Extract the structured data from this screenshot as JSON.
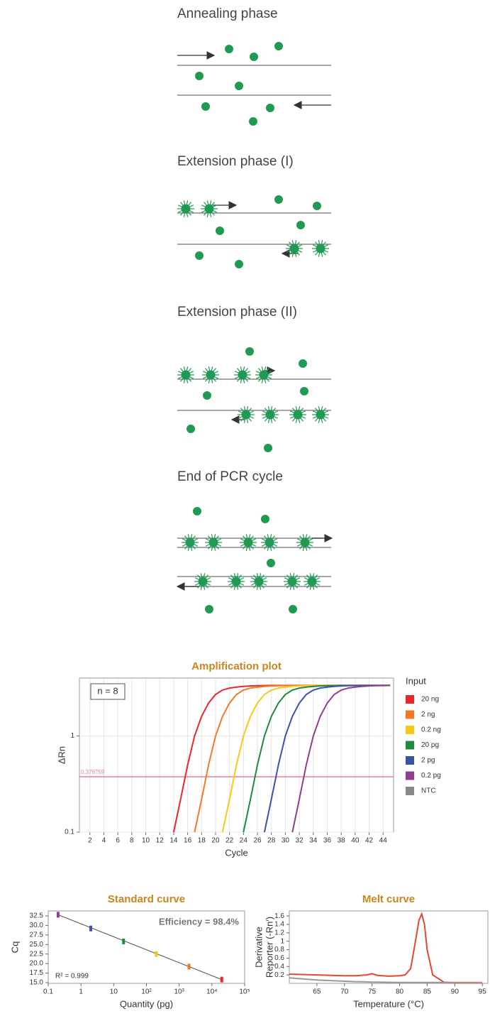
{
  "diagram": {
    "panels": [
      {
        "title": "Annealing phase"
      },
      {
        "title": "Extension phase (I)"
      },
      {
        "title": "Extension phase (II)"
      },
      {
        "title": "End of PCR cycle"
      }
    ]
  },
  "chart_data": [
    {
      "type": "line",
      "title": "Amplification plot",
      "xlabel": "Cycle",
      "ylabel": "ΔRn",
      "yscale": "log",
      "grid": true,
      "legend": "right",
      "legend_title": "Input",
      "annotation": "n = 8",
      "threshold": 0.376759,
      "threshold_color": "#e87ca0",
      "xlim": [
        0.5,
        45.5
      ],
      "xticks": [
        2,
        4,
        6,
        8,
        10,
        12,
        14,
        16,
        18,
        20,
        22,
        24,
        26,
        28,
        30,
        32,
        34,
        36,
        38,
        40,
        42,
        44
      ],
      "ylim": [
        0.1,
        4
      ],
      "yticks": [
        0.1,
        1
      ],
      "x": [
        14,
        15,
        16,
        17,
        18,
        19,
        20,
        21,
        22,
        23,
        24,
        25,
        26,
        27,
        28,
        29,
        30,
        31,
        32,
        33,
        34,
        35,
        36,
        37,
        38,
        39,
        40,
        41,
        42,
        43,
        44,
        45
      ],
      "series": [
        {
          "name": "20 ng",
          "color": "#e8262b",
          "values": [
            0.1,
            0.22,
            0.5,
            1.0,
            1.6,
            2.2,
            2.7,
            3.0,
            3.15,
            3.22,
            3.28,
            3.31,
            3.33,
            3.34,
            3.35,
            3.35,
            3.35,
            3.35,
            3.35,
            3.35,
            3.35,
            3.35,
            3.35,
            3.35,
            3.35,
            3.35,
            3.35,
            3.35,
            3.35,
            3.35,
            3.35,
            3.35
          ]
        },
        {
          "name": "2 ng",
          "color": "#ef7a26",
          "values": [
            null,
            null,
            null,
            0.1,
            0.22,
            0.5,
            1.0,
            1.6,
            2.2,
            2.7,
            3.0,
            3.15,
            3.22,
            3.28,
            3.31,
            3.33,
            3.34,
            3.35,
            3.35,
            3.35,
            3.35,
            3.35,
            3.35,
            3.35,
            3.35,
            3.35,
            3.35,
            3.35,
            3.35,
            3.35,
            3.35,
            3.35
          ]
        },
        {
          "name": "0.2 ng",
          "color": "#f5c81a",
          "values": [
            null,
            null,
            null,
            null,
            null,
            null,
            null,
            0.1,
            0.22,
            0.5,
            1.0,
            1.6,
            2.2,
            2.7,
            3.0,
            3.15,
            3.22,
            3.28,
            3.31,
            3.33,
            3.34,
            3.35,
            3.35,
            3.35,
            3.35,
            3.35,
            3.35,
            3.35,
            3.35,
            3.35,
            3.35,
            3.35
          ]
        },
        {
          "name": "20 pg",
          "color": "#1f8a3c",
          "values": [
            null,
            null,
            null,
            null,
            null,
            null,
            null,
            null,
            null,
            null,
            0.1,
            0.22,
            0.5,
            1.0,
            1.6,
            2.2,
            2.7,
            3.0,
            3.15,
            3.22,
            3.28,
            3.31,
            3.33,
            3.34,
            3.35,
            3.35,
            3.35,
            3.35,
            3.35,
            3.35,
            3.35,
            3.35
          ]
        },
        {
          "name": "2 pg",
          "color": "#3a52a8",
          "values": [
            null,
            null,
            null,
            null,
            null,
            null,
            null,
            null,
            null,
            null,
            null,
            null,
            null,
            0.1,
            0.22,
            0.5,
            1.0,
            1.6,
            2.2,
            2.7,
            3.0,
            3.15,
            3.22,
            3.28,
            3.31,
            3.33,
            3.34,
            3.35,
            3.35,
            3.35,
            3.35,
            3.35
          ]
        },
        {
          "name": "0.2 pg",
          "color": "#8e3f8e",
          "values": [
            null,
            null,
            null,
            null,
            null,
            null,
            null,
            null,
            null,
            null,
            null,
            null,
            null,
            null,
            null,
            null,
            null,
            0.1,
            0.22,
            0.5,
            1.0,
            1.6,
            2.2,
            2.7,
            3.0,
            3.15,
            3.22,
            3.28,
            3.31,
            3.33,
            3.34,
            3.35
          ]
        },
        {
          "name": "NTC",
          "color": "#888888",
          "values": [
            null,
            null,
            null,
            null,
            null,
            null,
            null,
            null,
            null,
            null,
            null,
            null,
            null,
            null,
            null,
            null,
            null,
            null,
            null,
            null,
            null,
            null,
            null,
            null,
            null,
            null,
            null,
            null,
            null,
            null,
            null,
            null
          ]
        }
      ]
    },
    {
      "type": "scatter",
      "title": "Standard curve",
      "xlabel": "Quantity (pg)",
      "ylabel": "Cq",
      "xscale": "log",
      "annotations": [
        "Efficiency = 98.4%",
        "R² = 0.999"
      ],
      "xlim": [
        0.1,
        100000
      ],
      "xticks": [
        0.1,
        1,
        10,
        {
          "value": 100,
          "label": "10²"
        },
        {
          "value": 1000,
          "label": "10³"
        },
        {
          "value": 10000,
          "label": "10⁴"
        },
        {
          "value": 100000,
          "label": "10⁵"
        }
      ],
      "ylim": [
        14.8,
        33.8
      ],
      "yticks": [
        {
          "value": 15,
          "label": "15.0"
        },
        17.5,
        {
          "value": 20,
          "label": "20.0"
        },
        22.5,
        {
          "value": 25,
          "label": "25.0"
        },
        27.5,
        {
          "value": 30,
          "label": "30.0"
        },
        32.5
      ],
      "x": [
        0.2,
        2,
        20,
        200,
        2000,
        20000
      ],
      "values": [
        32.8,
        29.2,
        25.8,
        22.5,
        19.2,
        15.8
      ],
      "colors": [
        "#8e3f8e",
        "#3a52a8",
        "#1f8a3c",
        "#f5c81a",
        "#ef7a26",
        "#e8262b"
      ],
      "line_color": "#555555"
    },
    {
      "type": "line",
      "title": "Melt curve",
      "xlabel": "Temperature (°C)",
      "ylabel": [
        "Derivative",
        "Reporter (-Rn′)"
      ],
      "xlim": [
        60,
        96
      ],
      "xticks": [
        65,
        70,
        75,
        80,
        85,
        90,
        95
      ],
      "ylim": [
        0,
        1.72
      ],
      "yticks": [
        0.2,
        0.4,
        0.6,
        0.8,
        1,
        1.2,
        1.4,
        1.6
      ],
      "x": [
        60,
        65,
        70,
        72,
        74,
        75,
        76,
        78,
        80,
        81,
        82,
        83,
        83.5,
        84,
        84.5,
        85,
        86,
        88,
        90,
        95
      ],
      "series": [
        {
          "color": "#e8462b",
          "values": [
            0.22,
            0.2,
            0.18,
            0.18,
            0.2,
            0.23,
            0.19,
            0.17,
            0.18,
            0.2,
            0.35,
            1.1,
            1.5,
            1.65,
            1.4,
            0.8,
            0.2,
            0.03,
            0.01,
            0.01
          ]
        },
        {
          "color": "#999999",
          "values": [
            0.13,
            0.08,
            0.05,
            0.04,
            0.035,
            0.03,
            0.03,
            0.025,
            0.02,
            0.02,
            0.02,
            0.02,
            0.02,
            0.02,
            0.02,
            0.02,
            0.02,
            0.02,
            0.02,
            0.02
          ]
        }
      ]
    }
  ]
}
